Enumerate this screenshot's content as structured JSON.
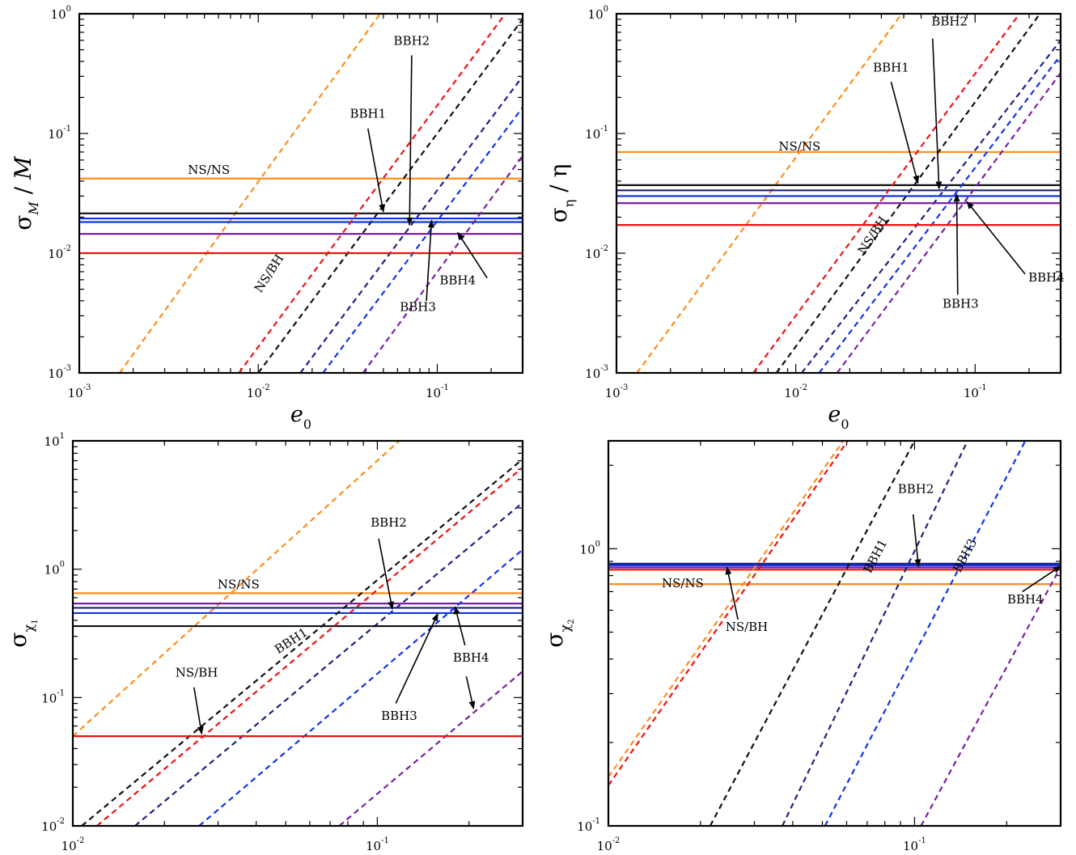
{
  "colors": {
    "orange": "#ff8c1a",
    "red": "#ee1111",
    "black": "#111111",
    "navy": "#1a237e",
    "blue": "#1133ee",
    "purple": "#7b1fa2"
  },
  "chart_data": [
    {
      "type": "line",
      "panel": "top-left",
      "scale": "log-log",
      "xlabel": "e",
      "xlabel_sub": "0",
      "ylabel_main": "σ",
      "ylabel_sub": "M",
      "ylabel_tail": " / M",
      "xlim": [
        0.001,
        0.3
      ],
      "ylim": [
        0.001,
        1
      ],
      "xticks": [
        {
          "v": 0.001,
          "b": "10",
          "e": "-3"
        },
        {
          "v": 0.01,
          "b": "10",
          "e": "-2"
        },
        {
          "v": 0.1,
          "b": "10",
          "e": "-1"
        }
      ],
      "yticks": [
        {
          "v": 0.001,
          "b": "10",
          "e": "-3"
        },
        {
          "v": 0.01,
          "b": "10",
          "e": "-2"
        },
        {
          "v": 0.1,
          "b": "10",
          "e": "-1"
        },
        {
          "v": 1,
          "b": "10",
          "e": "0"
        }
      ],
      "series": [
        {
          "color": "orange",
          "hline": 0.042,
          "dashed": [
            [
              0.00168,
              0.001
            ],
            [
              0.048,
              1
            ]
          ]
        },
        {
          "color": "black",
          "hline": 0.0215,
          "dashed": [
            [
              0.01,
              0.001
            ],
            [
              0.3,
              0.9
            ]
          ]
        },
        {
          "color": "blue",
          "hline": 0.0195
        },
        {
          "color": "blue",
          "hline": 0.0182,
          "dashed": [
            [
              0.023,
              0.001
            ],
            [
              0.3,
              0.165
            ]
          ]
        },
        {
          "color": "navy",
          "dashed": [
            [
              0.0172,
              0.001
            ],
            [
              0.3,
              0.3
            ]
          ]
        },
        {
          "color": "purple",
          "hline": 0.0145,
          "dashed": [
            [
              0.0385,
              0.001
            ],
            [
              0.3,
              0.065
            ]
          ]
        },
        {
          "color": "red",
          "hline": 0.01,
          "dashed": [
            [
              0.0078,
              0.001
            ],
            [
              0.24,
              1
            ]
          ]
        }
      ],
      "labels": [
        {
          "text": "NS/NS",
          "x": 0.0053,
          "y": 0.046
        },
        {
          "text": "NS/BH",
          "x": 0.012,
          "y": 0.0065,
          "rot": -57
        },
        {
          "text": "BBH1",
          "x": 0.041,
          "y": 0.135
        },
        {
          "text": "BBH2",
          "x": 0.072,
          "y": 0.55
        },
        {
          "text": "BBH3",
          "x": 0.078,
          "y": 0.0033
        },
        {
          "text": "BBH4",
          "x": 0.13,
          "y": 0.0055
        }
      ],
      "arrows": [
        {
          "from": [
            0.041,
            0.11
          ],
          "to": [
            0.05,
            0.0222
          ]
        },
        {
          "from": [
            0.072,
            0.45
          ],
          "to": [
            0.07,
            0.0172
          ]
        },
        {
          "from": [
            0.087,
            0.004
          ],
          "to": [
            0.093,
            0.0188
          ]
        },
        {
          "from": [
            0.19,
            0.0062
          ],
          "to": [
            0.13,
            0.0149
          ]
        }
      ]
    },
    {
      "type": "line",
      "panel": "top-right",
      "scale": "log-log",
      "xlabel": "e",
      "xlabel_sub": "0",
      "ylabel_main": "σ",
      "ylabel_sub": "η",
      "ylabel_tail": " / η",
      "xlim": [
        0.001,
        0.3
      ],
      "ylim": [
        0.001,
        1
      ],
      "xticks": [
        {
          "v": 0.001,
          "b": "10",
          "e": "-3"
        },
        {
          "v": 0.01,
          "b": "10",
          "e": "-2"
        },
        {
          "v": 0.1,
          "b": "10",
          "e": "-1"
        }
      ],
      "yticks": [
        {
          "v": 0.001,
          "b": "10",
          "e": "-3"
        },
        {
          "v": 0.01,
          "b": "10",
          "e": "-2"
        },
        {
          "v": 0.1,
          "b": "10",
          "e": "-1"
        },
        {
          "v": 1,
          "b": "10",
          "e": "0"
        }
      ],
      "series": [
        {
          "color": "orange",
          "hline": 0.07,
          "dashed": [
            [
              0.0013,
              0.001
            ],
            [
              0.039,
              1
            ]
          ]
        },
        {
          "color": "black",
          "hline": 0.037,
          "dashed": [
            [
              0.0078,
              0.001
            ],
            [
              0.23,
              1
            ]
          ]
        },
        {
          "color": "navy",
          "hline": 0.0335,
          "dashed": [
            [
              0.0108,
              0.001
            ],
            [
              0.3,
              0.6
            ]
          ]
        },
        {
          "color": "blue",
          "hline": 0.03,
          "dashed": [
            [
              0.0135,
              0.001
            ],
            [
              0.3,
              0.45
            ]
          ]
        },
        {
          "color": "purple",
          "hline": 0.0262,
          "dashed": [
            [
              0.017,
              0.001
            ],
            [
              0.3,
              0.32
            ]
          ]
        },
        {
          "color": "red",
          "hline": 0.0172,
          "dashed": [
            [
              0.0058,
              0.001
            ],
            [
              0.177,
              1
            ]
          ]
        }
      ],
      "labels": [
        {
          "text": "NS/NS",
          "x": 0.0105,
          "y": 0.072
        },
        {
          "text": "NS/BH",
          "x": 0.028,
          "y": 0.0135,
          "rot": -57
        },
        {
          "text": "BBH1",
          "x": 0.034,
          "y": 0.33
        },
        {
          "text": "BBH2",
          "x": 0.072,
          "y": 0.8
        },
        {
          "text": "BBH3",
          "x": 0.083,
          "y": 0.0035
        },
        {
          "text": "BBH4",
          "x": 0.25,
          "y": 0.0058
        }
      ],
      "arrows": [
        {
          "from": [
            0.034,
            0.27
          ],
          "to": [
            0.048,
            0.0385
          ]
        },
        {
          "from": [
            0.058,
            0.62
          ],
          "to": [
            0.063,
            0.0345
          ]
        },
        {
          "from": [
            0.08,
            0.0045
          ],
          "to": [
            0.079,
            0.031
          ]
        },
        {
          "from": [
            0.19,
            0.0067
          ],
          "to": [
            0.09,
            0.027
          ]
        }
      ]
    },
    {
      "type": "line",
      "panel": "bottom-left",
      "scale": "log-log",
      "xlabel": "e",
      "xlabel_sub": "0",
      "ylabel_main": "σ",
      "ylabel_sub": "χ",
      "ylabel_subsub": "1",
      "ylabel_tail": "",
      "xlim": [
        0.01,
        0.3
      ],
      "ylim": [
        0.01,
        10
      ],
      "xticks": [
        {
          "v": 0.01,
          "b": "10",
          "e": "-2"
        },
        {
          "v": 0.1,
          "b": "10",
          "e": "-1"
        }
      ],
      "yticks": [
        {
          "v": 0.01,
          "b": "10",
          "e": "-2"
        },
        {
          "v": 0.1,
          "b": "10",
          "e": "-1"
        },
        {
          "v": 1,
          "b": "10",
          "e": "0"
        },
        {
          "v": 10,
          "b": "10",
          "e": "1"
        }
      ],
      "series": [
        {
          "color": "orange",
          "hline": 0.65,
          "dashed": [
            [
              0.01,
              0.05
            ],
            [
              0.118,
              10
            ]
          ]
        },
        {
          "color": "purple",
          "hline": 0.54,
          "dashed": [
            [
              0.075,
              0.01
            ],
            [
              0.3,
              0.16
            ]
          ]
        },
        {
          "color": "navy",
          "hline": 0.5,
          "dashed": [
            [
              0.016,
              0.01
            ],
            [
              0.3,
              3.3
            ]
          ]
        },
        {
          "color": "blue",
          "hline": 0.455,
          "dashed": [
            [
              0.026,
              0.01
            ],
            [
              0.3,
              1.42
            ]
          ]
        },
        {
          "color": "black",
          "hline": 0.36,
          "dashed": [
            [
              0.0107,
              0.01
            ],
            [
              0.3,
              7.2
            ]
          ]
        },
        {
          "color": "red",
          "hline": 0.05,
          "dashed": [
            [
              0.012,
              0.01
            ],
            [
              0.3,
              6.2
            ]
          ]
        }
      ],
      "labels": [
        {
          "text": "NS/NS",
          "x": 0.035,
          "y": 0.71
        },
        {
          "text": "NS/BH",
          "x": 0.0255,
          "y": 0.145
        },
        {
          "text": "BBH1",
          "x": 0.053,
          "y": 0.26,
          "rot": -33
        },
        {
          "text": "BBH2",
          "x": 0.109,
          "y": 2.15
        },
        {
          "text": "BBH3",
          "x": 0.118,
          "y": 0.067
        },
        {
          "text": "BBH4",
          "x": 0.203,
          "y": 0.19
        }
      ],
      "arrows": [
        {
          "from": [
            0.025,
            0.12
          ],
          "to": [
            0.0265,
            0.052
          ]
        },
        {
          "from": [
            0.101,
            1.73
          ],
          "to": [
            0.112,
            0.49
          ]
        },
        {
          "from": [
            0.115,
            0.09
          ],
          "to": [
            0.158,
            0.45
          ]
        },
        {
          "from": [
            0.194,
            0.255
          ],
          "to": [
            0.18,
            0.51
          ]
        },
        {
          "from": [
            0.196,
            0.146
          ],
          "to": [
            0.207,
            0.082
          ]
        }
      ]
    },
    {
      "type": "line",
      "panel": "bottom-right",
      "scale": "log-log",
      "xlabel": "e",
      "xlabel_sub": "0",
      "ylabel_main": "σ",
      "ylabel_sub": "χ",
      "ylabel_subsub": "2",
      "ylabel_tail": "",
      "xlim": [
        0.01,
        0.3
      ],
      "ylim": [
        0.1,
        2.45
      ],
      "xticks": [
        {
          "v": 0.01,
          "b": "10",
          "e": "-2"
        },
        {
          "v": 0.1,
          "b": "10",
          "e": "-1"
        }
      ],
      "yticks": [
        {
          "v": 0.1,
          "b": "10",
          "e": "-1"
        },
        {
          "v": 1,
          "b": "10",
          "e": "0"
        }
      ],
      "series": [
        {
          "color": "navy",
          "hline": 0.883
        },
        {
          "color": "blue",
          "hline": 0.87
        },
        {
          "color": "purple",
          "hline": 0.855
        },
        {
          "color": "red",
          "hline": 0.84
        },
        {
          "color": "orange",
          "hline": 0.745,
          "dashed": [
            [
              0.01,
              0.15
            ],
            [
              0.0585,
              2.45
            ]
          ]
        },
        {
          "color": "red",
          "dashed": [
            [
              0.01,
              0.14
            ],
            [
              0.0605,
              2.45
            ]
          ]
        },
        {
          "color": "black",
          "dashed": [
            [
              0.0215,
              0.1
            ],
            [
              0.1,
              2.45
            ]
          ]
        },
        {
          "color": "navy",
          "dashed": [
            [
              0.037,
              0.1
            ],
            [
              0.149,
              2.45
            ]
          ]
        },
        {
          "color": "blue",
          "dashed": [
            [
              0.051,
              0.1
            ],
            [
              0.23,
              2.45
            ]
          ]
        },
        {
          "color": "purple",
          "dashed": [
            [
              0.105,
              0.1
            ],
            [
              0.3,
              0.86
            ]
          ]
        }
      ],
      "labels": [
        {
          "text": "NS/NS",
          "x": 0.0175,
          "y": 0.725
        },
        {
          "text": "NS/BH",
          "x": 0.0283,
          "y": 0.505
        },
        {
          "text": "BBH1",
          "x": 0.0765,
          "y": 0.925,
          "rot": -62
        },
        {
          "text": "BBH2",
          "x": 0.101,
          "y": 1.59
        },
        {
          "text": "BBH3",
          "x": 0.15,
          "y": 0.93,
          "rot": -62
        },
        {
          "text": "BBH4",
          "x": 0.23,
          "y": 0.635
        }
      ],
      "arrows": [
        {
          "from": [
            0.0265,
            0.555
          ],
          "to": [
            0.0244,
            0.858
          ]
        },
        {
          "from": [
            0.099,
            1.33
          ],
          "to": [
            0.103,
            0.862
          ]
        },
        {
          "from": [
            0.225,
            0.7
          ],
          "to": [
            0.3,
            0.865
          ]
        }
      ]
    }
  ]
}
